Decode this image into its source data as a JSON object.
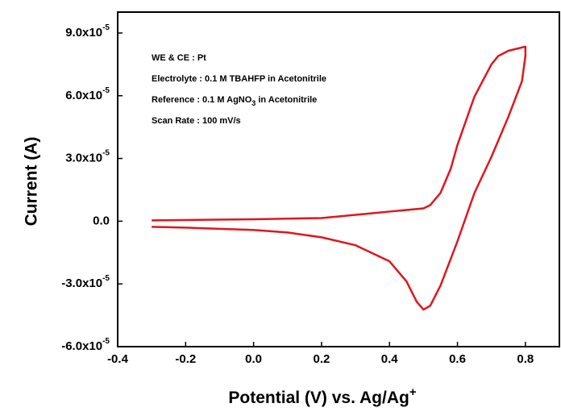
{
  "chart_data": {
    "type": "line",
    "xlabel": {
      "text": "Potential (V) vs. Ag/Ag",
      "sup": "+"
    },
    "ylabel": "Current (A)",
    "annotations": [
      {
        "text": "WE & CE : Pt"
      },
      {
        "text": "Electrolyte : 0.1 M TBAHFP in Acetonitrile"
      },
      {
        "text": "Reference : 0.1 M AgNO",
        "sub": "3",
        "after": " in Acetonitrile"
      },
      {
        "text": "Scan Rate : 100 mV/s"
      }
    ],
    "xlim": [
      -0.4,
      0.9
    ],
    "xticks": [
      -0.4,
      -0.2,
      {
        "value": 0,
        "label": "0.0"
      },
      0.2,
      0.4,
      0.6,
      0.8
    ],
    "ylim": [
      -6e-05,
      0.0001
    ],
    "yticks": [
      {
        "value": -6e-05,
        "label": "-6.0x10",
        "exponent": "-5"
      },
      {
        "value": -3e-05,
        "label": "-3.0x10",
        "exponent": "-5"
      },
      {
        "value": 0,
        "label": "0.0"
      },
      {
        "value": 3e-05,
        "label": "3.0x10",
        "exponent": "-5"
      },
      {
        "value": 6e-05,
        "label": "6.0x10",
        "exponent": "-5"
      },
      {
        "value": 9e-05,
        "label": "9.0x10",
        "exponent": "-5"
      }
    ],
    "series": [
      {
        "color": "#e0161d",
        "x": [
          -0.3,
          0.0,
          0.2,
          0.35,
          0.4,
          0.5,
          0.52,
          0.55,
          0.58,
          0.6,
          0.65,
          0.7,
          0.72,
          0.75,
          0.8,
          0.8,
          0.79,
          0.75,
          0.7,
          0.65,
          0.6,
          0.55,
          0.52,
          0.5,
          0.48,
          0.45,
          0.4,
          0.3,
          0.2,
          0.1,
          0.0,
          -0.2,
          -0.3
        ],
        "values": [
          4e-07,
          9e-07,
          1.5e-06,
          3.8e-06,
          4.6e-06,
          6.1e-06,
          7.7e-06,
          1.35e-05,
          2.5e-05,
          3.65e-05,
          5.96e-05,
          7.5e-05,
          7.9e-05,
          8.15e-05,
          8.35e-05,
          7.9e-05,
          6.7e-05,
          5e-05,
          3.08e-05,
          1.35e-05,
          -9.6e-06,
          -3.08e-05,
          -4.04e-05,
          -4.23e-05,
          -3.85e-05,
          -2.88e-05,
          -1.92e-05,
          -1.15e-05,
          -7.7e-06,
          -5.4e-06,
          -4.2e-06,
          -3.1e-06,
          -2.7e-06
        ]
      }
    ]
  }
}
